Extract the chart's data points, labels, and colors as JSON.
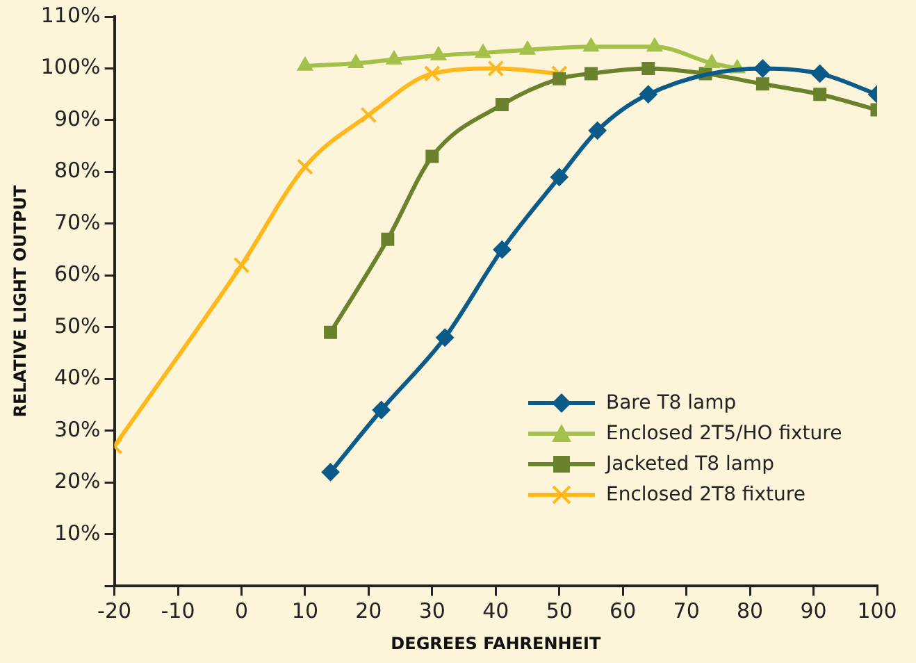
{
  "chart_data": {
    "type": "line",
    "xlabel": "DEGREES FAHRENHEIT",
    "ylabel": "RELATIVE LIGHT OUTPUT",
    "xlim": [
      -20,
      100
    ],
    "xticks": [
      -20,
      -10,
      0,
      10,
      20,
      30,
      40,
      50,
      60,
      70,
      80,
      90,
      100
    ],
    "ylim": [
      0,
      110
    ],
    "yticks": [
      {
        "value": 0,
        "label": null
      },
      {
        "value": 10,
        "label": "10%"
      },
      {
        "value": 20,
        "label": "20%"
      },
      {
        "value": 30,
        "label": "30%"
      },
      {
        "value": 40,
        "label": "40%"
      },
      {
        "value": 50,
        "label": "50%"
      },
      {
        "value": 60,
        "label": "60%"
      },
      {
        "value": 70,
        "label": "70%"
      },
      {
        "value": 80,
        "label": "80%"
      },
      {
        "value": 90,
        "label": "90%"
      },
      {
        "value": 100,
        "label": "100%"
      },
      {
        "value": 110,
        "label": "110%"
      }
    ],
    "grid": false,
    "legend": "bottom right",
    "line_style": "solid",
    "series": [
      {
        "name": "Bare T8 lamp",
        "color": "#0a5a8a",
        "marker": "diamond",
        "x": [
          14,
          22,
          32,
          41,
          50,
          56,
          64,
          82,
          91,
          100
        ],
        "values": [
          22,
          34,
          48,
          65,
          79,
          88,
          95,
          100,
          99,
          95
        ]
      },
      {
        "name": "Enclosed 2T5/HO fixture",
        "color": "#a3c14a",
        "marker": "triangle",
        "x": [
          10,
          18,
          24,
          31,
          38,
          45,
          55,
          65,
          74,
          78
        ],
        "values": [
          100.5,
          101,
          101.7,
          102.5,
          103,
          103.6,
          104.2,
          104.2,
          101,
          100
        ]
      },
      {
        "name": "Jacketed T8 lamp",
        "color": "#6b822d",
        "marker": "square",
        "x": [
          14,
          23,
          30,
          41,
          50,
          55,
          64,
          73,
          82,
          91,
          100
        ],
        "values": [
          49,
          67,
          83,
          93,
          98,
          99,
          100,
          99,
          97,
          95,
          92
        ]
      },
      {
        "name": "Enclosed 2T8 fixture",
        "color": "#ffb81c",
        "marker": "cross",
        "x": [
          -20,
          0,
          10,
          20,
          30,
          40,
          50
        ],
        "values": [
          27,
          62,
          81,
          91,
          99,
          100,
          99
        ]
      }
    ]
  }
}
